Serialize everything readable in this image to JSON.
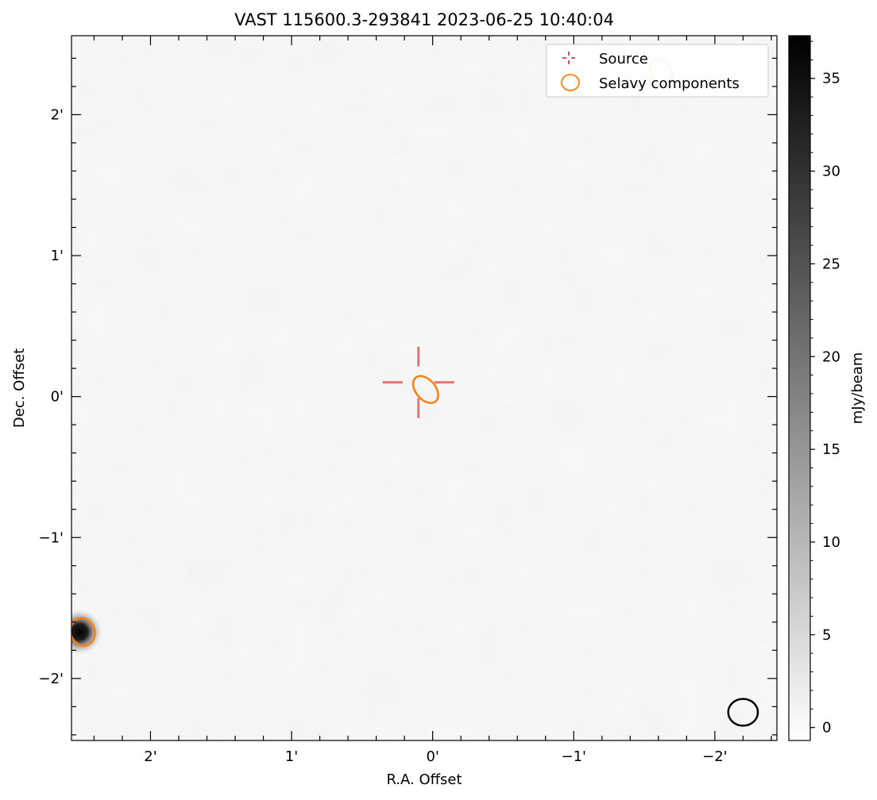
{
  "chart_data": {
    "type": "heatmap",
    "title": "VAST 115600.3-293841 2023-06-25 10:40:04",
    "xlabel": "R.A. Offset",
    "ylabel": "Dec. Offset",
    "xlim": [
      2.56,
      -2.44
    ],
    "ylim": [
      -2.44,
      2.56
    ],
    "x_reversed": true,
    "x_ticks": [
      {
        "value": 2,
        "label": "2'"
      },
      {
        "value": 1,
        "label": "1'"
      },
      {
        "value": 0,
        "label": "0'"
      },
      {
        "value": -1,
        "label": "−1'"
      },
      {
        "value": -2,
        "label": "−2'"
      }
    ],
    "y_ticks": [
      {
        "value": 2,
        "label": "2'"
      },
      {
        "value": 1,
        "label": "1'"
      },
      {
        "value": 0,
        "label": "0'"
      },
      {
        "value": -1,
        "label": "−1'"
      },
      {
        "value": -2,
        "label": "−2'"
      }
    ],
    "colorbar": {
      "label": "mJy/beam",
      "min": -0.7,
      "max": 37.3,
      "colormap": "gray_r",
      "ticks": [
        0,
        5,
        10,
        15,
        20,
        25,
        30,
        35
      ]
    },
    "legend": {
      "placement": "top-right",
      "entries": [
        {
          "label": "Source",
          "marker": "crosshair",
          "color": "#d62728"
        },
        {
          "label": "Selavy components",
          "marker": "ellipse",
          "color": "#ff7f0e"
        }
      ]
    },
    "sources": [
      {
        "name": "Source",
        "x": 0.05,
        "y": 0.05,
        "color": "#e57373"
      }
    ],
    "components": [
      {
        "x": 0.05,
        "y": 0.05,
        "major": 0.22,
        "minor": 0.14,
        "pa_deg": 40,
        "color": "#ff7f0e",
        "alpha": 1.0
      },
      {
        "x": 2.48,
        "y": -1.67,
        "major": 0.2,
        "minor": 0.17,
        "pa_deg": 15,
        "color": "#ff7f0e",
        "alpha": 1.0
      },
      {
        "x": -1.62,
        "y": 2.3,
        "major": 0.2,
        "minor": 0.14,
        "pa_deg": 25,
        "color": "#ff7f0e",
        "alpha": 0.35
      }
    ],
    "bright_source": {
      "x": 2.48,
      "y": -1.67,
      "peak": 37.3
    },
    "beam": {
      "x": -2.2,
      "y": -2.24,
      "major": 0.21,
      "minor": 0.19,
      "color": "#000000"
    }
  }
}
